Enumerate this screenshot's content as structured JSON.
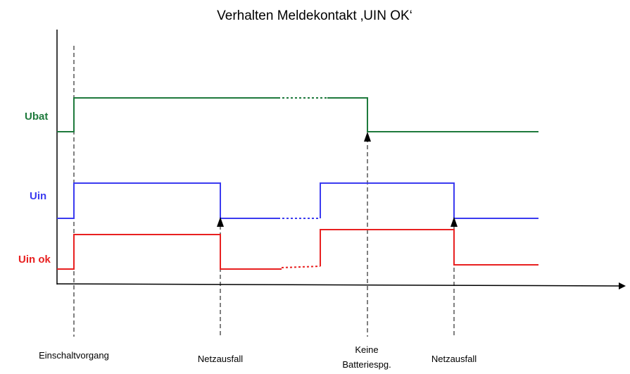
{
  "title": "Verhalten Meldekontakt ‚UIN OK‘",
  "signals": [
    {
      "label": "Ubat"
    },
    {
      "label": "Uin"
    },
    {
      "label": "Uin ok"
    }
  ],
  "events": [
    {
      "lines": [
        "Einschaltvorgang"
      ]
    },
    {
      "lines": [
        "Netzausfall"
      ]
    },
    {
      "lines": [
        "Keine",
        "Batteriespg."
      ]
    },
    {
      "lines": [
        "Netzausfall"
      ]
    }
  ]
}
